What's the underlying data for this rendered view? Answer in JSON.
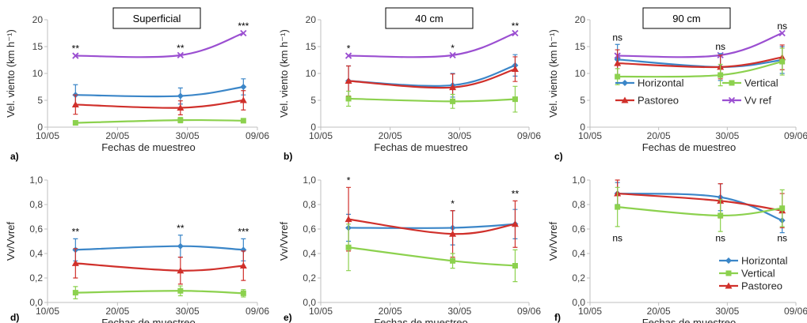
{
  "chart_data": [
    {
      "id": "a",
      "type": "line",
      "panel_label": "a)",
      "box_title": "Superficial",
      "xlabel": "Fechas de muestreo",
      "ylabel": "Vel. viento (km h⁻¹)",
      "xticks": [
        "10/05",
        "20/05",
        "30/05",
        "09/06"
      ],
      "yticks": [
        "0",
        "5",
        "10",
        "15",
        "20"
      ],
      "ylim": [
        0,
        20
      ],
      "x_dates": [
        "14/05",
        "29/05",
        "07/06"
      ],
      "significance": [
        "**",
        "**",
        "***"
      ],
      "series": [
        {
          "key": "vvref",
          "values": [
            13.3,
            13.4,
            17.5
          ],
          "err": [
            0,
            0,
            0
          ],
          "color": "#9b4fd1",
          "marker": "x"
        },
        {
          "key": "horizontal",
          "values": [
            6.0,
            5.8,
            7.5
          ],
          "err": [
            1.9,
            1.5,
            1.5
          ],
          "color": "#3b86c8",
          "marker": "diamond"
        },
        {
          "key": "pastoreo",
          "values": [
            4.2,
            3.6,
            5.0
          ],
          "err": [
            1.8,
            1.3,
            1.8
          ],
          "color": "#d0302b",
          "marker": "triangle"
        },
        {
          "key": "vertical",
          "values": [
            0.8,
            1.3,
            1.2
          ],
          "err": [
            0.4,
            0.5,
            0.3
          ],
          "color": "#8cd14e",
          "marker": "square"
        }
      ]
    },
    {
      "id": "b",
      "type": "line",
      "panel_label": "b)",
      "box_title": "40 cm",
      "xlabel": "Fechas de muestreo",
      "ylabel": "Vel. viento (km h⁻¹)",
      "xticks": [
        "10/05",
        "20/05",
        "30/05",
        "09/06"
      ],
      "yticks": [
        "0",
        "5",
        "10",
        "15",
        "20"
      ],
      "ylim": [
        0,
        20
      ],
      "x_dates": [
        "14/05",
        "29/05",
        "07/06"
      ],
      "significance": [
        "*",
        "*",
        "**"
      ],
      "series": [
        {
          "key": "vvref",
          "values": [
            13.3,
            13.4,
            17.5
          ],
          "err": [
            0,
            0,
            0
          ],
          "color": "#9b4fd1",
          "marker": "x"
        },
        {
          "key": "horizontal",
          "values": [
            8.6,
            7.8,
            11.5
          ],
          "err": [
            2.8,
            2.2,
            2.0
          ],
          "color": "#3b86c8",
          "marker": "diamond"
        },
        {
          "key": "pastoreo",
          "values": [
            8.6,
            7.4,
            10.8
          ],
          "err": [
            2.8,
            2.5,
            2.3
          ],
          "color": "#d0302b",
          "marker": "triangle"
        },
        {
          "key": "vertical",
          "values": [
            5.3,
            4.8,
            5.2
          ],
          "err": [
            1.4,
            1.3,
            2.4
          ],
          "color": "#8cd14e",
          "marker": "square"
        }
      ]
    },
    {
      "id": "c",
      "type": "line",
      "panel_label": "c)",
      "box_title": "90 cm",
      "xlabel": "Fechas de muestreo",
      "ylabel": "Vel. viento (km h⁻¹)",
      "xticks": [
        "10/05",
        "20/05",
        "30/05",
        "09/06"
      ],
      "yticks": [
        "0",
        "5",
        "10",
        "15",
        "20"
      ],
      "ylim": [
        0,
        20
      ],
      "x_dates": [
        "14/05",
        "29/05",
        "07/06"
      ],
      "significance": [
        "ns",
        "ns",
        "ns"
      ],
      "legend": {
        "position": "right",
        "columns": 2,
        "entries": [
          "Horizontal",
          "Vertical",
          "Pastoreo",
          "Vv ref"
        ]
      },
      "series": [
        {
          "key": "vvref",
          "values": [
            13.3,
            13.4,
            17.5
          ],
          "err": [
            0,
            0,
            0
          ],
          "color": "#9b4fd1",
          "marker": "x"
        },
        {
          "key": "horizontal",
          "values": [
            12.6,
            11.2,
            12.5
          ],
          "err": [
            2.8,
            2.5,
            2.5
          ],
          "color": "#3b86c8",
          "marker": "diamond"
        },
        {
          "key": "pastoreo",
          "values": [
            11.9,
            11.2,
            13.0
          ],
          "err": [
            2.5,
            2.2,
            2.3
          ],
          "color": "#d0302b",
          "marker": "triangle"
        },
        {
          "key": "vertical",
          "values": [
            9.4,
            9.7,
            12.2
          ],
          "err": [
            1.5,
            2.0,
            2.5
          ],
          "color": "#8cd14e",
          "marker": "square"
        }
      ]
    },
    {
      "id": "d",
      "type": "line",
      "panel_label": "d)",
      "xlabel": "Fechas de muestreo",
      "ylabel": "Vv/Vvref",
      "xticks": [
        "10/05",
        "20/05",
        "30/05",
        "09/06"
      ],
      "yticks": [
        "0,0",
        "0,2",
        "0,4",
        "0,6",
        "0,8",
        "1,0"
      ],
      "ylim": [
        0,
        1
      ],
      "x_dates": [
        "14/05",
        "29/05",
        "07/06"
      ],
      "significance": [
        "**",
        "**",
        "***"
      ],
      "series": [
        {
          "key": "horizontal",
          "values": [
            0.43,
            0.46,
            0.43
          ],
          "err": [
            0.09,
            0.09,
            0.09
          ],
          "color": "#3b86c8",
          "marker": "diamond"
        },
        {
          "key": "pastoreo",
          "values": [
            0.32,
            0.26,
            0.3
          ],
          "err": [
            0.12,
            0.11,
            0.12
          ],
          "color": "#d0302b",
          "marker": "triangle"
        },
        {
          "key": "vertical",
          "values": [
            0.08,
            0.095,
            0.075
          ],
          "err": [
            0.05,
            0.04,
            0.03
          ],
          "color": "#8cd14e",
          "marker": "square"
        }
      ]
    },
    {
      "id": "e",
      "type": "line",
      "panel_label": "e)",
      "xlabel": "Fechas de muestreo",
      "ylabel": "Vv/Vvref",
      "xticks": [
        "10/05",
        "20/05",
        "30/05",
        "09/06"
      ],
      "yticks": [
        "0,0",
        "0,2",
        "0,4",
        "0,6",
        "0,8",
        "1,0"
      ],
      "ylim": [
        0,
        1
      ],
      "x_dates": [
        "14/05",
        "29/05",
        "07/06"
      ],
      "significance": [
        "*",
        "*",
        "**"
      ],
      "series": [
        {
          "key": "horizontal",
          "values": [
            0.61,
            0.61,
            0.64
          ],
          "err": [
            0.11,
            0.14,
            0.12
          ],
          "color": "#3b86c8",
          "marker": "diamond"
        },
        {
          "key": "pastoreo",
          "values": [
            0.68,
            0.56,
            0.64
          ],
          "err": [
            0.26,
            0.19,
            0.19
          ],
          "color": "#d0302b",
          "marker": "triangle"
        },
        {
          "key": "vertical",
          "values": [
            0.45,
            0.34,
            0.3
          ],
          "err": [
            0.19,
            0.06,
            0.13
          ],
          "color": "#8cd14e",
          "marker": "square"
        }
      ]
    },
    {
      "id": "f",
      "type": "line",
      "panel_label": "f)",
      "xlabel": "Fechas de muestreo",
      "ylabel": "Vv/Vvref",
      "xticks": [
        "10/05",
        "20/05",
        "30/05",
        "09/06"
      ],
      "yticks": [
        "0,0",
        "0,2",
        "0,4",
        "0,6",
        "0,8",
        "1,0"
      ],
      "ylim": [
        0,
        1
      ],
      "x_dates": [
        "14/05",
        "29/05",
        "07/06"
      ],
      "significance": [
        "ns",
        "ns",
        "ns"
      ],
      "legend": {
        "position": "bottom-right",
        "columns": 1,
        "entries": [
          "Horizontal",
          "Vertical",
          "Pastoreo"
        ]
      },
      "series": [
        {
          "key": "horizontal",
          "values": [
            0.89,
            0.86,
            0.67
          ],
          "err": [
            0.09,
            0.11,
            0.1
          ],
          "color": "#3b86c8",
          "marker": "diamond"
        },
        {
          "key": "pastoreo",
          "values": [
            0.89,
            0.83,
            0.75
          ],
          "err": [
            0.11,
            0.14,
            0.14
          ],
          "color": "#d0302b",
          "marker": "triangle"
        },
        {
          "key": "vertical",
          "values": [
            0.78,
            0.71,
            0.77
          ],
          "err": [
            0.16,
            0.13,
            0.15
          ],
          "color": "#8cd14e",
          "marker": "square"
        }
      ]
    }
  ]
}
